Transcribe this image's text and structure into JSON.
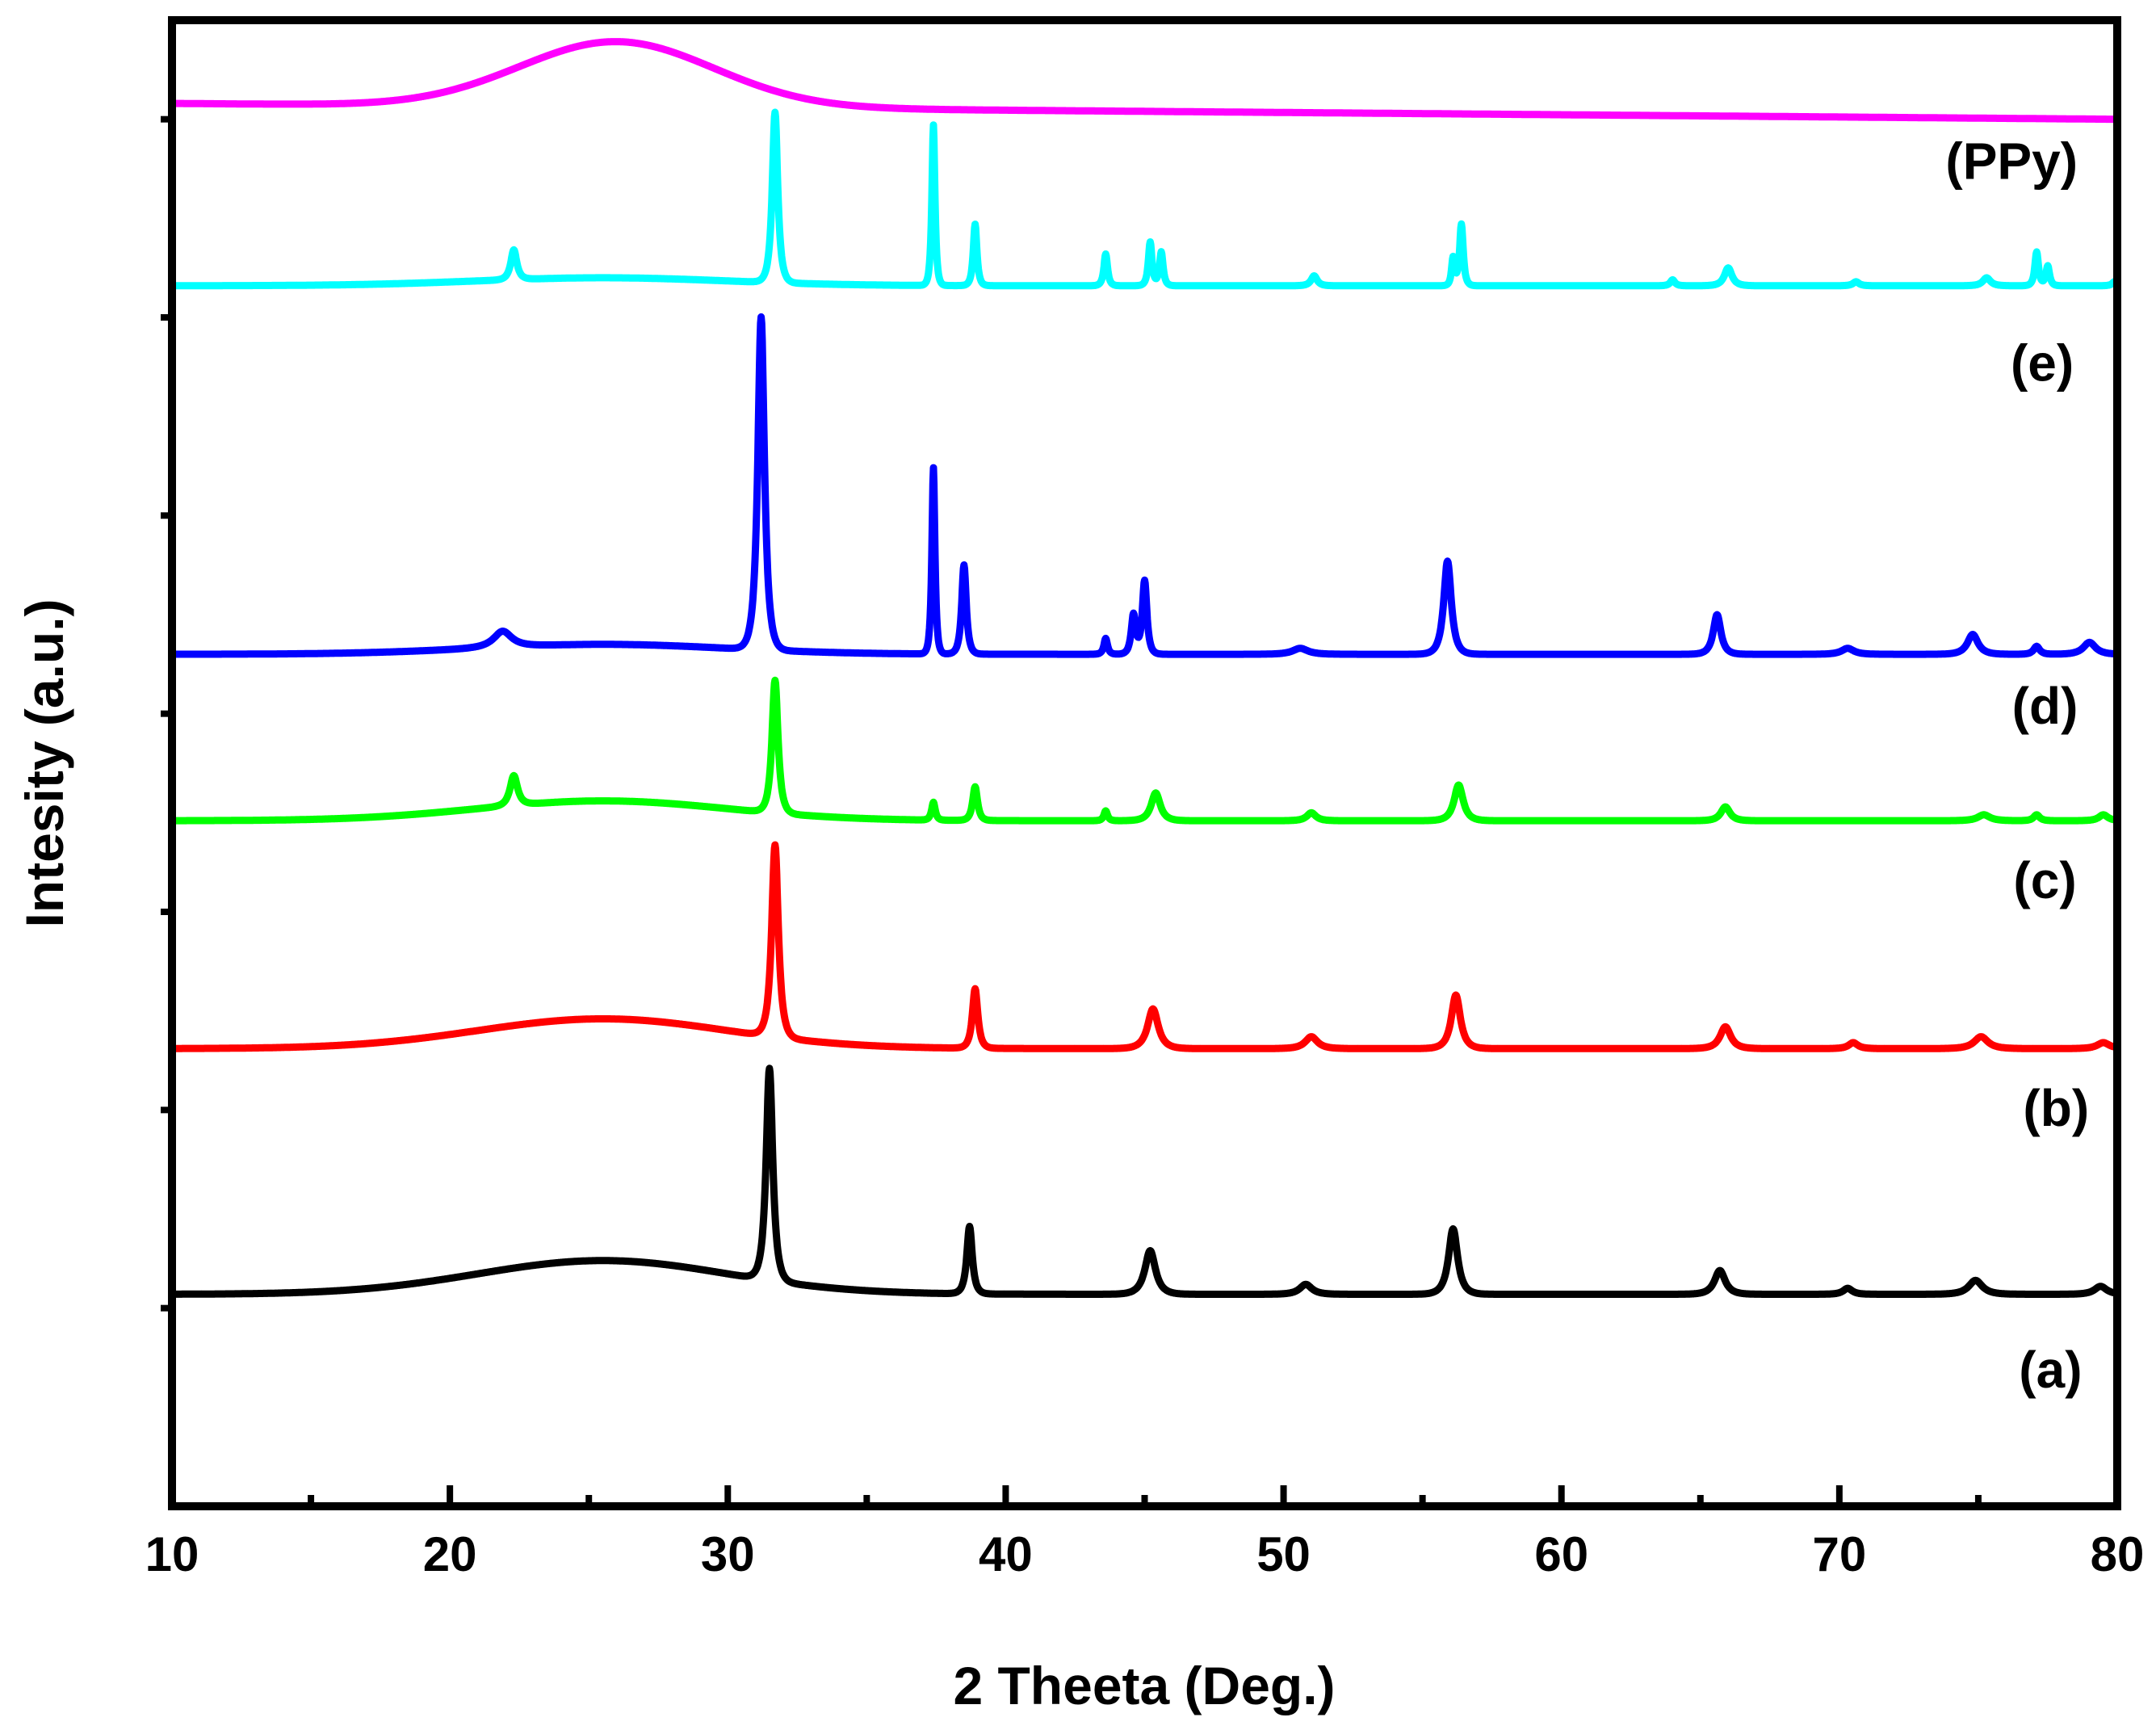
{
  "chart_data": {
    "type": "line",
    "title": "",
    "xlabel": "2 Theeta (Deg.)",
    "ylabel": "Intesity  (a.u.)",
    "xlim": [
      10,
      80
    ],
    "ylim": [
      0,
      7.5
    ],
    "x_ticks": [
      10,
      20,
      30,
      40,
      50,
      60,
      70,
      80
    ],
    "x_tick_labels": [
      "10",
      "20",
      "30",
      "40",
      "50",
      "60",
      "70",
      "80"
    ],
    "x_minor_ticks": [
      15,
      25,
      35,
      45,
      55,
      65,
      75
    ],
    "y_tick_values": [
      1.0,
      2.0,
      3.0,
      4.0,
      5.0,
      6.0,
      7.0
    ],
    "y_tick_labels_shown": false,
    "grid": false,
    "legend": "none (series labelled inline on the right)",
    "series": [
      {
        "name": "(a)",
        "color": "#000000",
        "baseline": 1.07,
        "label_pos": [
          77.6,
          0.6
        ],
        "hump": {
          "center": 25.5,
          "height": 0.17,
          "width": 4.5
        },
        "peaks": [
          {
            "x": 31.5,
            "h": 1.07,
            "w": 0.22
          },
          {
            "x": 38.7,
            "h": 0.34,
            "w": 0.18
          },
          {
            "x": 45.2,
            "h": 0.22,
            "w": 0.35
          },
          {
            "x": 50.8,
            "h": 0.05,
            "w": 0.4
          },
          {
            "x": 56.1,
            "h": 0.33,
            "w": 0.3
          },
          {
            "x": 65.7,
            "h": 0.12,
            "w": 0.35
          },
          {
            "x": 70.3,
            "h": 0.03,
            "w": 0.3
          },
          {
            "x": 74.9,
            "h": 0.07,
            "w": 0.45
          },
          {
            "x": 79.4,
            "h": 0.04,
            "w": 0.4
          }
        ]
      },
      {
        "name": "(b)",
        "color": "#ff0000",
        "baseline": 2.31,
        "label_pos": [
          77.8,
          1.92
        ],
        "hump": {
          "center": 25.5,
          "height": 0.15,
          "width": 4.5
        },
        "peaks": [
          {
            "x": 31.7,
            "h": 0.97,
            "w": 0.22
          },
          {
            "x": 38.9,
            "h": 0.3,
            "w": 0.18
          },
          {
            "x": 45.3,
            "h": 0.2,
            "w": 0.35
          },
          {
            "x": 51.0,
            "h": 0.06,
            "w": 0.4
          },
          {
            "x": 56.2,
            "h": 0.27,
            "w": 0.3
          },
          {
            "x": 65.9,
            "h": 0.11,
            "w": 0.35
          },
          {
            "x": 70.5,
            "h": 0.03,
            "w": 0.3
          },
          {
            "x": 75.1,
            "h": 0.06,
            "w": 0.45
          },
          {
            "x": 79.5,
            "h": 0.03,
            "w": 0.4
          }
        ]
      },
      {
        "name": "(c)",
        "color": "#00ff00",
        "baseline": 3.46,
        "label_pos": [
          77.4,
          3.07
        ],
        "hump": {
          "center": 25.5,
          "height": 0.1,
          "width": 4.5
        },
        "peaks": [
          {
            "x": 22.3,
            "h": 0.15,
            "w": 0.25
          },
          {
            "x": 31.7,
            "h": 0.67,
            "w": 0.2
          },
          {
            "x": 37.4,
            "h": 0.09,
            "w": 0.12
          },
          {
            "x": 38.9,
            "h": 0.17,
            "w": 0.16
          },
          {
            "x": 43.6,
            "h": 0.05,
            "w": 0.12
          },
          {
            "x": 45.4,
            "h": 0.14,
            "w": 0.3
          },
          {
            "x": 51.0,
            "h": 0.04,
            "w": 0.3
          },
          {
            "x": 56.3,
            "h": 0.18,
            "w": 0.3
          },
          {
            "x": 65.9,
            "h": 0.07,
            "w": 0.3
          },
          {
            "x": 75.2,
            "h": 0.03,
            "w": 0.4
          },
          {
            "x": 77.1,
            "h": 0.03,
            "w": 0.2
          },
          {
            "x": 79.5,
            "h": 0.03,
            "w": 0.3
          }
        ]
      },
      {
        "name": "(d)",
        "color": "#0000ff",
        "baseline": 4.3,
        "label_pos": [
          77.4,
          3.95
        ],
        "hump": {
          "center": 25.5,
          "height": 0.05,
          "width": 4.5
        },
        "peaks": [
          {
            "x": 21.9,
            "h": 0.08,
            "w": 0.6
          },
          {
            "x": 31.2,
            "h": 1.68,
            "w": 0.22
          },
          {
            "x": 37.4,
            "h": 0.94,
            "w": 0.1
          },
          {
            "x": 38.5,
            "h": 0.45,
            "w": 0.15
          },
          {
            "x": 43.6,
            "h": 0.08,
            "w": 0.12
          },
          {
            "x": 44.6,
            "h": 0.2,
            "w": 0.15
          },
          {
            "x": 45.0,
            "h": 0.37,
            "w": 0.15
          },
          {
            "x": 50.6,
            "h": 0.03,
            "w": 0.5
          },
          {
            "x": 55.9,
            "h": 0.47,
            "w": 0.25
          },
          {
            "x": 65.6,
            "h": 0.2,
            "w": 0.25
          },
          {
            "x": 70.3,
            "h": 0.03,
            "w": 0.4
          },
          {
            "x": 74.8,
            "h": 0.1,
            "w": 0.35
          },
          {
            "x": 77.1,
            "h": 0.04,
            "w": 0.2
          },
          {
            "x": 79.0,
            "h": 0.06,
            "w": 0.4
          }
        ]
      },
      {
        "name": "(e)",
        "color": "#00ffff",
        "baseline": 6.16,
        "label_pos": [
          77.3,
          5.68
        ],
        "hump": {
          "center": 25.5,
          "height": 0.04,
          "width": 4.5
        },
        "peaks": [
          {
            "x": 22.3,
            "h": 0.15,
            "w": 0.2
          },
          {
            "x": 31.7,
            "h": 0.86,
            "w": 0.18
          },
          {
            "x": 37.4,
            "h": 0.81,
            "w": 0.1
          },
          {
            "x": 38.9,
            "h": 0.31,
            "w": 0.12
          },
          {
            "x": 43.6,
            "h": 0.16,
            "w": 0.12
          },
          {
            "x": 45.2,
            "h": 0.22,
            "w": 0.12
          },
          {
            "x": 45.6,
            "h": 0.17,
            "w": 0.12
          },
          {
            "x": 51.1,
            "h": 0.05,
            "w": 0.2
          },
          {
            "x": 56.1,
            "h": 0.14,
            "w": 0.1
          },
          {
            "x": 56.4,
            "h": 0.31,
            "w": 0.12
          },
          {
            "x": 64.0,
            "h": 0.03,
            "w": 0.15
          },
          {
            "x": 66.0,
            "h": 0.09,
            "w": 0.25
          },
          {
            "x": 70.6,
            "h": 0.02,
            "w": 0.2
          },
          {
            "x": 75.3,
            "h": 0.04,
            "w": 0.25
          },
          {
            "x": 77.1,
            "h": 0.17,
            "w": 0.12
          },
          {
            "x": 77.5,
            "h": 0.1,
            "w": 0.12
          },
          {
            "x": 79.9,
            "h": 0.02,
            "w": 0.15
          }
        ]
      },
      {
        "name": "(PPy)",
        "color": "#ff00ff",
        "baseline": 7.08,
        "label_pos": [
          76.2,
          6.7
        ],
        "tail_drop": 0.08,
        "hump": {
          "center": 26.0,
          "height": 0.33,
          "width": 3.5
        },
        "peaks": []
      }
    ]
  }
}
